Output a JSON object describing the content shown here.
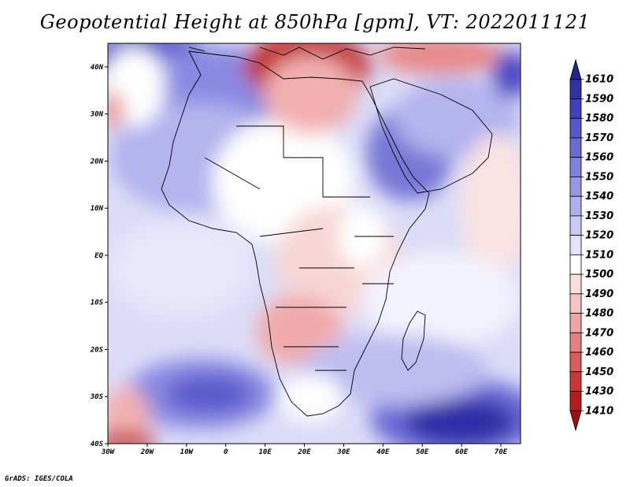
{
  "title": "Geopotential Height at 850hPa [gpm], VT: 2022011121",
  "footer": "GrADS: IGES/COLA",
  "map": {
    "variable": "Geopotential Height",
    "level": "850hPa",
    "units": "gpm",
    "valid_time": "2022011121",
    "lon_range": [
      -30,
      75
    ],
    "lat_range": [
      -40,
      45
    ],
    "lon_ticks": [
      "30W",
      "20W",
      "10W",
      "0",
      "10E",
      "20E",
      "30E",
      "40E",
      "50E",
      "60E",
      "70E"
    ],
    "lat_ticks": [
      "40N",
      "30N",
      "20N",
      "10N",
      "EQ",
      "10S",
      "20S",
      "30S",
      "40S"
    ]
  },
  "colorbar": {
    "labels": [
      "1610",
      "1590",
      "1580",
      "1570",
      "1560",
      "1550",
      "1540",
      "1530",
      "1520",
      "1510",
      "1500",
      "1490",
      "1480",
      "1470",
      "1460",
      "1450",
      "1430",
      "1410"
    ],
    "colors": [
      "#24248c",
      "#2f2fa6",
      "#4141bf",
      "#5757cc",
      "#6b6bd6",
      "#8080df",
      "#9797e6",
      "#b0b0ee",
      "#c9c9f4",
      "#e2e2fa",
      "#ffffff",
      "#fbdede",
      "#f6c2c2",
      "#efa3a3",
      "#e57f7f",
      "#d95c5c",
      "#c93737",
      "#b51c1c",
      "#a01010"
    ]
  }
}
